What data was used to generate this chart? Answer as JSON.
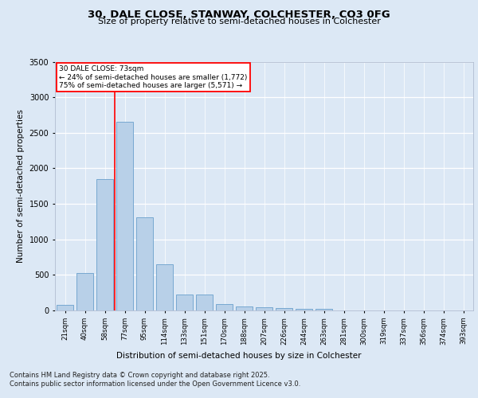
{
  "title_line1": "30, DALE CLOSE, STANWAY, COLCHESTER, CO3 0FG",
  "title_line2": "Size of property relative to semi-detached houses in Colchester",
  "xlabel": "Distribution of semi-detached houses by size in Colchester",
  "ylabel": "Number of semi-detached properties",
  "categories": [
    "21sqm",
    "40sqm",
    "58sqm",
    "77sqm",
    "95sqm",
    "114sqm",
    "133sqm",
    "151sqm",
    "170sqm",
    "188sqm",
    "207sqm",
    "226sqm",
    "244sqm",
    "263sqm",
    "281sqm",
    "300sqm",
    "319sqm",
    "337sqm",
    "356sqm",
    "374sqm",
    "393sqm"
  ],
  "values": [
    75,
    525,
    1850,
    2650,
    1310,
    645,
    225,
    225,
    90,
    55,
    45,
    30,
    25,
    20,
    5,
    5,
    2,
    2,
    1,
    1,
    1
  ],
  "bar_color": "#b8d0e8",
  "bar_edge_color": "#6aa0cc",
  "annotation_line1": "30 DALE CLOSE: 73sqm",
  "annotation_line2": "← 24% of semi-detached houses are smaller (1,772)",
  "annotation_line3": "75% of semi-detached houses are larger (5,571) →",
  "ylim": [
    0,
    3500
  ],
  "yticks": [
    0,
    500,
    1000,
    1500,
    2000,
    2500,
    3000,
    3500
  ],
  "footer_line1": "Contains HM Land Registry data © Crown copyright and database right 2025.",
  "footer_line2": "Contains public sector information licensed under the Open Government Licence v3.0.",
  "bg_color": "#dce8f5",
  "plot_bg_color": "#dce8f5"
}
